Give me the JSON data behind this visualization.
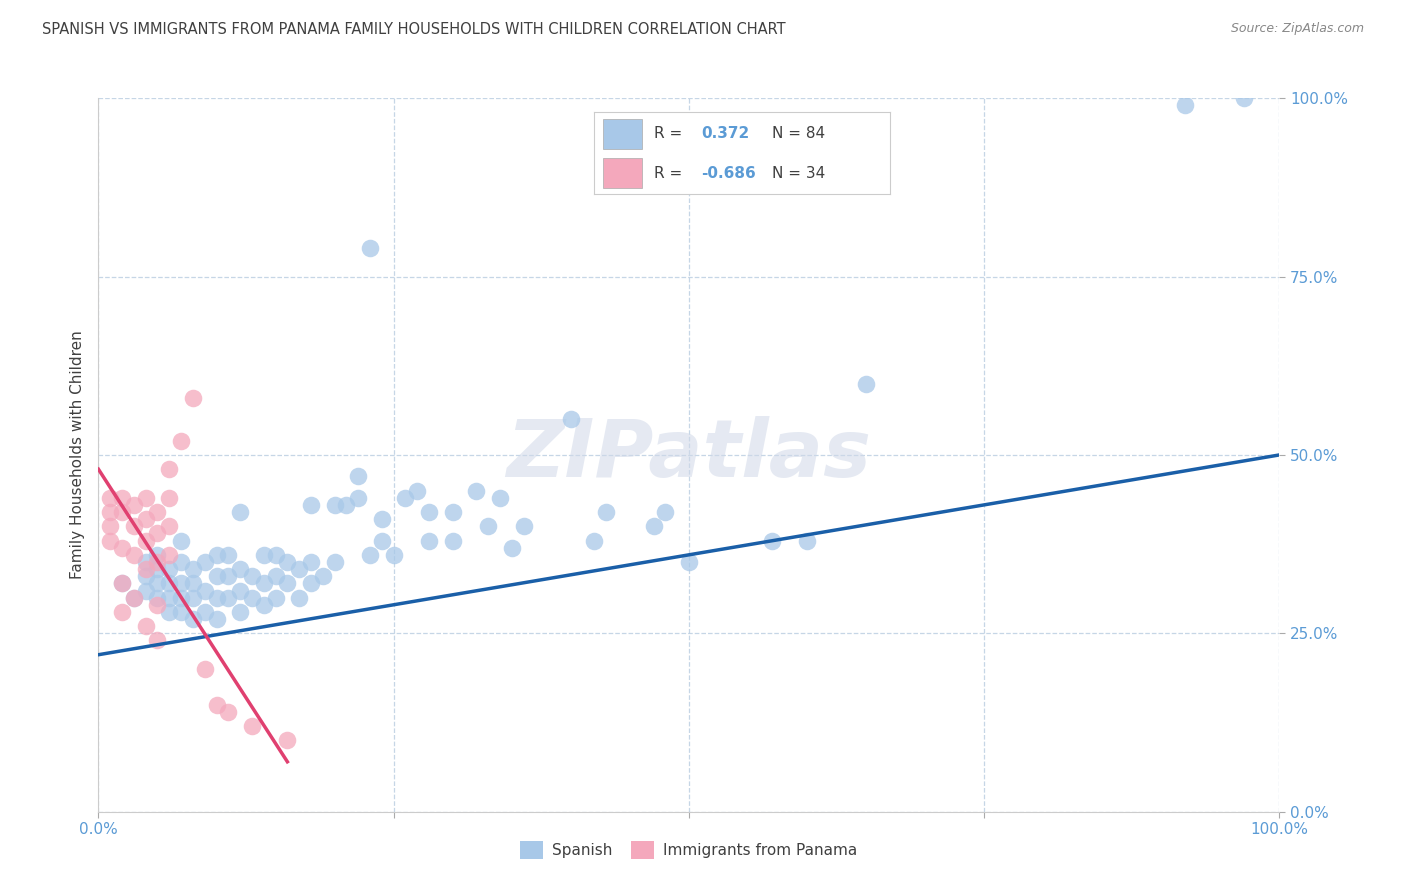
{
  "title": "SPANISH VS IMMIGRANTS FROM PANAMA FAMILY HOUSEHOLDS WITH CHILDREN CORRELATION CHART",
  "source": "Source: ZipAtlas.com",
  "ylabel": "Family Households with Children",
  "watermark": "ZIPatlas",
  "xlim": [
    0,
    1.0
  ],
  "ylim": [
    0,
    1.0
  ],
  "xticks": [
    0.0,
    0.25,
    0.5,
    0.75,
    1.0
  ],
  "yticks": [
    0.0,
    0.25,
    0.5,
    0.75,
    1.0
  ],
  "xticklabels": [
    "0.0%",
    "",
    "",
    "",
    "100.0%"
  ],
  "yticklabels": [
    "0.0%",
    "25.0%",
    "50.0%",
    "75.0%",
    "100.0%"
  ],
  "blue_color": "#a8c8e8",
  "pink_color": "#f4a8bc",
  "blue_line_color": "#1a5fa8",
  "pink_line_color": "#e04070",
  "title_color": "#404040",
  "tick_label_color": "#5b9bd5",
  "grid_color": "#b8cce0",
  "legend_r1_val": "0.372",
  "legend_r1_n": "84",
  "legend_r2_val": "-0.686",
  "legend_r2_n": "34",
  "spanish_points": [
    [
      0.02,
      0.32
    ],
    [
      0.03,
      0.3
    ],
    [
      0.04,
      0.31
    ],
    [
      0.04,
      0.33
    ],
    [
      0.04,
      0.35
    ],
    [
      0.05,
      0.3
    ],
    [
      0.05,
      0.32
    ],
    [
      0.05,
      0.34
    ],
    [
      0.05,
      0.36
    ],
    [
      0.06,
      0.28
    ],
    [
      0.06,
      0.3
    ],
    [
      0.06,
      0.32
    ],
    [
      0.06,
      0.34
    ],
    [
      0.07,
      0.28
    ],
    [
      0.07,
      0.3
    ],
    [
      0.07,
      0.32
    ],
    [
      0.07,
      0.35
    ],
    [
      0.07,
      0.38
    ],
    [
      0.08,
      0.27
    ],
    [
      0.08,
      0.3
    ],
    [
      0.08,
      0.32
    ],
    [
      0.08,
      0.34
    ],
    [
      0.09,
      0.28
    ],
    [
      0.09,
      0.31
    ],
    [
      0.09,
      0.35
    ],
    [
      0.1,
      0.27
    ],
    [
      0.1,
      0.3
    ],
    [
      0.1,
      0.33
    ],
    [
      0.1,
      0.36
    ],
    [
      0.11,
      0.3
    ],
    [
      0.11,
      0.33
    ],
    [
      0.11,
      0.36
    ],
    [
      0.12,
      0.28
    ],
    [
      0.12,
      0.31
    ],
    [
      0.12,
      0.34
    ],
    [
      0.12,
      0.42
    ],
    [
      0.13,
      0.3
    ],
    [
      0.13,
      0.33
    ],
    [
      0.14,
      0.29
    ],
    [
      0.14,
      0.32
    ],
    [
      0.14,
      0.36
    ],
    [
      0.15,
      0.3
    ],
    [
      0.15,
      0.33
    ],
    [
      0.15,
      0.36
    ],
    [
      0.16,
      0.32
    ],
    [
      0.16,
      0.35
    ],
    [
      0.17,
      0.3
    ],
    [
      0.17,
      0.34
    ],
    [
      0.18,
      0.32
    ],
    [
      0.18,
      0.35
    ],
    [
      0.18,
      0.43
    ],
    [
      0.19,
      0.33
    ],
    [
      0.2,
      0.35
    ],
    [
      0.2,
      0.43
    ],
    [
      0.21,
      0.43
    ],
    [
      0.22,
      0.44
    ],
    [
      0.22,
      0.47
    ],
    [
      0.23,
      0.79
    ],
    [
      0.23,
      0.36
    ],
    [
      0.24,
      0.38
    ],
    [
      0.24,
      0.41
    ],
    [
      0.25,
      0.36
    ],
    [
      0.26,
      0.44
    ],
    [
      0.27,
      0.45
    ],
    [
      0.28,
      0.38
    ],
    [
      0.28,
      0.42
    ],
    [
      0.3,
      0.38
    ],
    [
      0.3,
      0.42
    ],
    [
      0.32,
      0.45
    ],
    [
      0.33,
      0.4
    ],
    [
      0.34,
      0.44
    ],
    [
      0.35,
      0.37
    ],
    [
      0.36,
      0.4
    ],
    [
      0.4,
      0.55
    ],
    [
      0.42,
      0.38
    ],
    [
      0.43,
      0.42
    ],
    [
      0.47,
      0.4
    ],
    [
      0.48,
      0.42
    ],
    [
      0.5,
      0.35
    ],
    [
      0.57,
      0.38
    ],
    [
      0.6,
      0.38
    ],
    [
      0.65,
      0.6
    ],
    [
      0.92,
      0.99
    ],
    [
      0.97,
      1.0
    ]
  ],
  "panama_points": [
    [
      0.01,
      0.42
    ],
    [
      0.01,
      0.4
    ],
    [
      0.01,
      0.38
    ],
    [
      0.01,
      0.44
    ],
    [
      0.02,
      0.44
    ],
    [
      0.02,
      0.42
    ],
    [
      0.02,
      0.37
    ],
    [
      0.02,
      0.32
    ],
    [
      0.02,
      0.28
    ],
    [
      0.03,
      0.43
    ],
    [
      0.03,
      0.4
    ],
    [
      0.03,
      0.36
    ],
    [
      0.03,
      0.3
    ],
    [
      0.04,
      0.44
    ],
    [
      0.04,
      0.41
    ],
    [
      0.04,
      0.38
    ],
    [
      0.04,
      0.34
    ],
    [
      0.04,
      0.26
    ],
    [
      0.05,
      0.42
    ],
    [
      0.05,
      0.39
    ],
    [
      0.05,
      0.35
    ],
    [
      0.05,
      0.29
    ],
    [
      0.05,
      0.24
    ],
    [
      0.06,
      0.48
    ],
    [
      0.06,
      0.44
    ],
    [
      0.06,
      0.4
    ],
    [
      0.06,
      0.36
    ],
    [
      0.07,
      0.52
    ],
    [
      0.08,
      0.58
    ],
    [
      0.09,
      0.2
    ],
    [
      0.1,
      0.15
    ],
    [
      0.11,
      0.14
    ],
    [
      0.13,
      0.12
    ],
    [
      0.16,
      0.1
    ]
  ],
  "blue_trendline": [
    [
      0.0,
      0.22
    ],
    [
      1.0,
      0.5
    ]
  ],
  "pink_trendline": [
    [
      0.0,
      0.48
    ],
    [
      0.16,
      0.07
    ]
  ]
}
